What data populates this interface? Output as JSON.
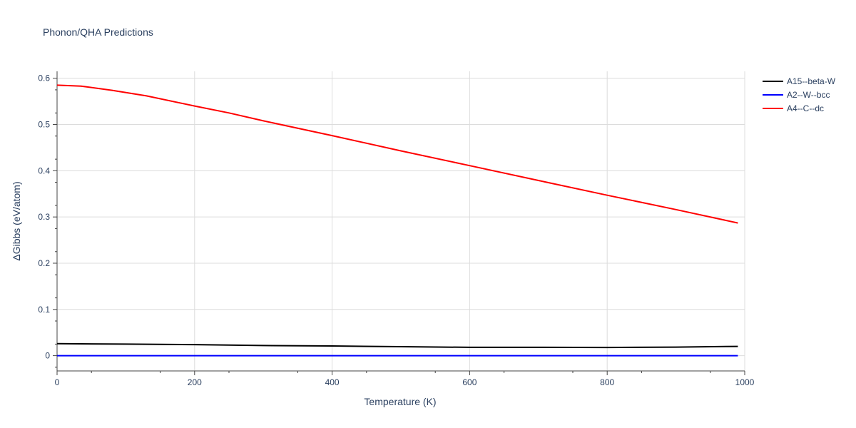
{
  "chart_data": {
    "type": "line",
    "title": "Phonon/QHA Predictions",
    "xlabel": "Temperature (K)",
    "ylabel": "ΔGibbs (eV/atom)",
    "xlim": [
      0,
      1000
    ],
    "ylim": [
      -0.033,
      0.615
    ],
    "xticks": [
      0,
      200,
      400,
      600,
      800,
      1000
    ],
    "yticks": [
      0,
      0.1,
      0.2,
      0.3,
      0.4,
      0.5,
      0.6
    ],
    "xtick_labels": [
      "0",
      "200",
      "400",
      "600",
      "800",
      "1000"
    ],
    "ytick_labels": [
      "0",
      "0.1",
      "0.2",
      "0.3",
      "0.4",
      "0.5",
      "0.6"
    ],
    "grid": true,
    "legend_position": "top-right",
    "series": [
      {
        "name": "A15--beta-W",
        "color": "#000000",
        "x": [
          0,
          100,
          200,
          300,
          400,
          500,
          600,
          700,
          800,
          900,
          990
        ],
        "y": [
          0.026,
          0.025,
          0.024,
          0.022,
          0.021,
          0.0195,
          0.018,
          0.018,
          0.0178,
          0.0185,
          0.02
        ]
      },
      {
        "name": "A2--W--bcc",
        "color": "#0000ff",
        "x": [
          0,
          990
        ],
        "y": [
          0,
          0
        ]
      },
      {
        "name": "A4--C--dc",
        "color": "#ff0000",
        "x": [
          0,
          35,
          80,
          130,
          200,
          250,
          300,
          400,
          500,
          600,
          700,
          800,
          900,
          990
        ],
        "y": [
          0.585,
          0.583,
          0.574,
          0.562,
          0.54,
          0.525,
          0.508,
          0.476,
          0.443,
          0.411,
          0.379,
          0.347,
          0.316,
          0.287
        ]
      }
    ]
  }
}
